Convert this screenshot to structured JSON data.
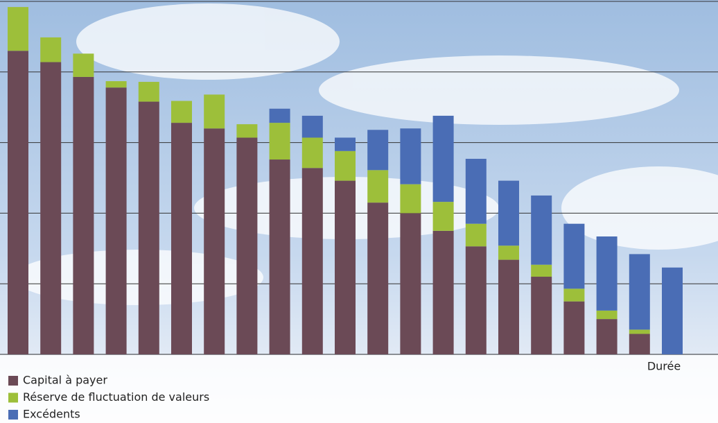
{
  "chart_data": {
    "type": "stacked-bar",
    "x_label": "Durée",
    "categories": [
      null,
      null,
      null,
      null,
      null,
      null,
      null,
      null,
      null,
      null,
      null,
      null,
      null,
      null,
      null,
      null,
      null,
      null,
      null,
      null,
      null
    ],
    "series": [
      {
        "name": "Capital à payer",
        "color": "#6b4a56",
        "values": [
          4.3,
          4.14,
          3.93,
          3.78,
          3.58,
          3.28,
          3.2,
          3.07,
          2.76,
          2.64,
          2.46,
          2.15,
          2.0,
          1.75,
          1.53,
          1.34,
          1.1,
          0.75,
          0.5,
          0.29,
          0
        ]
      },
      {
        "name": "Réserve de fluctuation de valeurs",
        "color": "#9dbf3a",
        "values": [
          0.62,
          0.35,
          0.33,
          0.09,
          0.28,
          0.31,
          0.48,
          0.19,
          0.52,
          0.43,
          0.42,
          0.46,
          0.41,
          0.41,
          0.32,
          0.2,
          0.17,
          0.18,
          0.12,
          0.06,
          0
        ]
      },
      {
        "name": "Excédents",
        "color": "#4a6db5",
        "values": [
          0,
          0,
          0,
          0,
          0,
          0,
          0,
          0,
          0.2,
          0.31,
          0.19,
          0.57,
          0.79,
          1.22,
          0.92,
          0.92,
          0.98,
          0.92,
          1.05,
          1.07,
          1.23
        ]
      }
    ],
    "ylim": [
      0,
      5
    ],
    "yticks": [
      0,
      1,
      2,
      3,
      4,
      5
    ],
    "grid": true
  }
}
